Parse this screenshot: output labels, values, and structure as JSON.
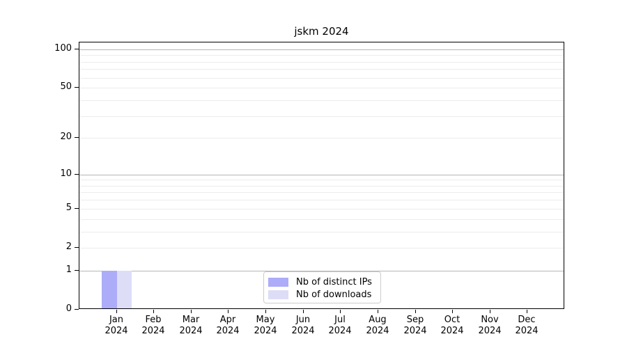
{
  "chart_data": {
    "type": "bar",
    "title": "jskm 2024",
    "categories": [
      "Jan",
      "Feb",
      "Mar",
      "Apr",
      "May",
      "Jun",
      "Jul",
      "Aug",
      "Sep",
      "Oct",
      "Nov",
      "Dec"
    ],
    "year_label": "2024",
    "series": [
      {
        "name": "Nb of distinct IPs",
        "color": "#acacf8",
        "values": [
          1,
          0,
          0,
          0,
          0,
          0,
          0,
          0,
          0,
          0,
          0,
          0
        ]
      },
      {
        "name": "Nb of downloads",
        "color": "#ddddf8",
        "values": [
          1,
          0,
          0,
          0,
          0,
          0,
          0,
          0,
          0,
          0,
          0,
          0
        ]
      }
    ],
    "xlabel": "",
    "ylabel": "",
    "yaxis": {
      "scale": "log1p",
      "ticks": [
        0,
        1,
        2,
        5,
        10,
        20,
        50,
        100
      ],
      "range": [
        0,
        113
      ],
      "major_gridlines": [
        1,
        10,
        100
      ],
      "minor_gridlines": [
        2,
        3,
        4,
        5,
        6,
        7,
        8,
        9,
        20,
        30,
        40,
        50,
        60,
        70,
        80,
        90
      ],
      "major_grid_color": "#b5b5b5",
      "minor_grid_color": "#ececec"
    },
    "grid": "horizontal",
    "legend_position": "lower center"
  }
}
